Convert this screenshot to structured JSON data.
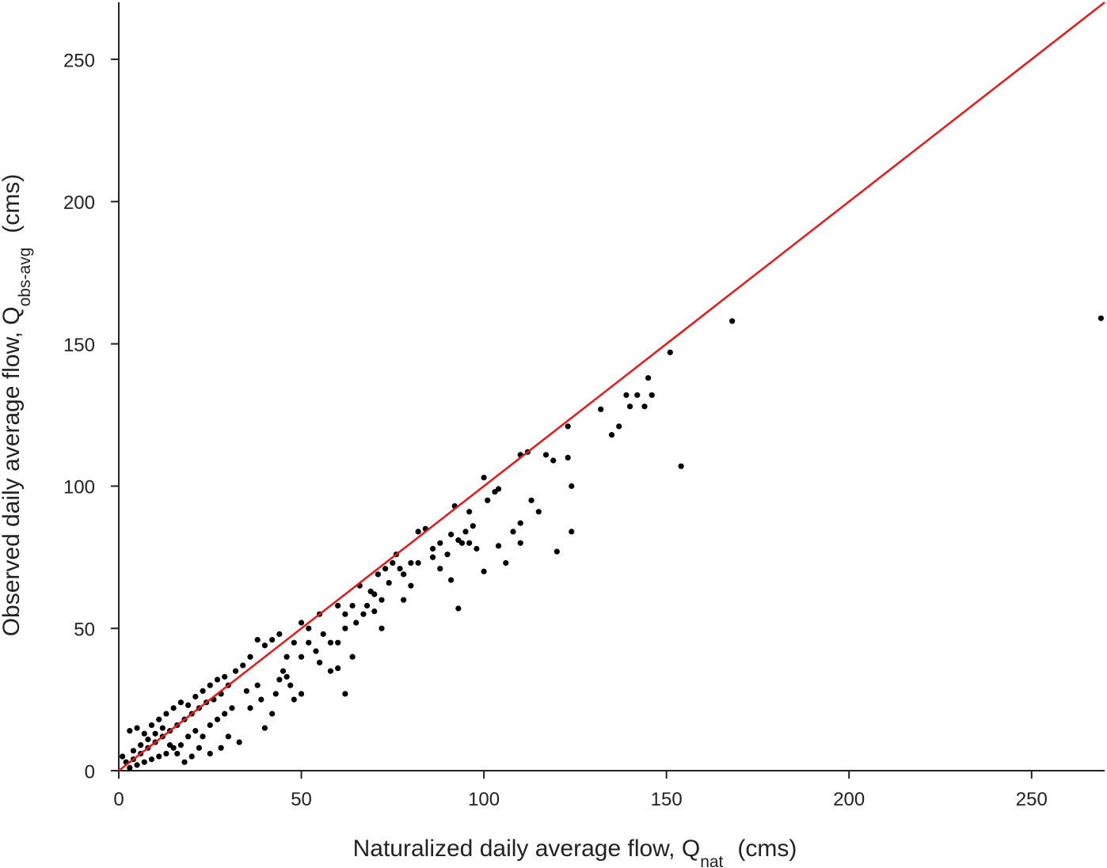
{
  "chart_data": {
    "type": "scatter",
    "x_label": "Naturalized daily average flow, Q",
    "x_label_sub": "nat",
    "x_label_unit": "(cms)",
    "y_label": "Observed daily average flow, Q",
    "y_label_sub": "obs-avg",
    "y_label_unit": "(cms)",
    "xlim": [
      0,
      270
    ],
    "ylim": [
      0,
      270
    ],
    "xticks": [
      0,
      50,
      100,
      150,
      200,
      250
    ],
    "yticks": [
      0,
      50,
      100,
      150,
      200,
      250
    ],
    "reference_line": {
      "x": [
        0,
        270
      ],
      "y": [
        0,
        270
      ],
      "color": "#e31a1c"
    },
    "series": [
      {
        "color": "#000000",
        "x": [
          269,
          168,
          151,
          154,
          145,
          146,
          139,
          142,
          140,
          144,
          132,
          137,
          135,
          123,
          123,
          124,
          124,
          120,
          110,
          112,
          117,
          119,
          100,
          103,
          104,
          113,
          115,
          110,
          110,
          108,
          106,
          104,
          100,
          101,
          96,
          97,
          95,
          92,
          91,
          93,
          94,
          96,
          98,
          93,
          91,
          88,
          86,
          84,
          82,
          80,
          80,
          76,
          73,
          75,
          77,
          78,
          71,
          69,
          66,
          72,
          78,
          70,
          72,
          68,
          64,
          62,
          60,
          64,
          58,
          58,
          62,
          55,
          52,
          50,
          48,
          46,
          44,
          42,
          40,
          38,
          36,
          34,
          46,
          48,
          42,
          40,
          44,
          38,
          36,
          32,
          30,
          28,
          26,
          24,
          22,
          20,
          18,
          16,
          14,
          12,
          10,
          8,
          6,
          4,
          2,
          1,
          3,
          5,
          7,
          9,
          11,
          13,
          15,
          17,
          19,
          21,
          23,
          25,
          27,
          29,
          31,
          33,
          30,
          28,
          25,
          22,
          20,
          18,
          16,
          14,
          12,
          10,
          8,
          6,
          4,
          3,
          5,
          7,
          9,
          11,
          13,
          15,
          17,
          19,
          21,
          23,
          25,
          27,
          29,
          50,
          52,
          54,
          56,
          45,
          47,
          43,
          39,
          35,
          55,
          60,
          62,
          65,
          67,
          70,
          74,
          82,
          86,
          88,
          90,
          60,
          50
        ],
        "values": [
          159,
          158,
          147,
          107,
          138,
          132,
          132,
          132,
          128,
          128,
          127,
          121,
          118,
          121,
          110,
          100,
          84,
          77,
          111,
          112,
          111,
          109,
          103,
          98,
          99,
          95,
          91,
          87,
          80,
          84,
          73,
          79,
          70,
          95,
          91,
          86,
          84,
          93,
          83,
          81,
          80,
          80,
          78,
          57,
          67,
          71,
          78,
          85,
          84,
          73,
          65,
          76,
          71,
          73,
          71,
          69,
          69,
          63,
          65,
          60,
          60,
          56,
          50,
          58,
          58,
          55,
          58,
          40,
          45,
          35,
          27,
          55,
          50,
          52,
          45,
          40,
          48,
          46,
          44,
          46,
          40,
          37,
          33,
          25,
          20,
          15,
          32,
          30,
          22,
          35,
          30,
          27,
          25,
          24,
          22,
          20,
          18,
          16,
          14,
          12,
          10,
          8,
          6,
          4,
          3,
          5,
          1,
          2,
          3,
          4,
          5,
          6,
          8,
          9,
          12,
          14,
          12,
          16,
          18,
          20,
          22,
          10,
          12,
          8,
          6,
          8,
          5,
          3,
          6,
          9,
          15,
          13,
          11,
          9,
          7,
          14,
          15,
          13,
          16,
          18,
          20,
          22,
          24,
          23,
          26,
          28,
          30,
          32,
          33,
          40,
          45,
          42,
          48,
          35,
          30,
          27,
          25,
          28,
          38,
          45,
          50,
          52,
          55,
          62,
          66,
          73,
          75,
          80,
          76,
          36,
          27
        ]
      }
    ]
  }
}
